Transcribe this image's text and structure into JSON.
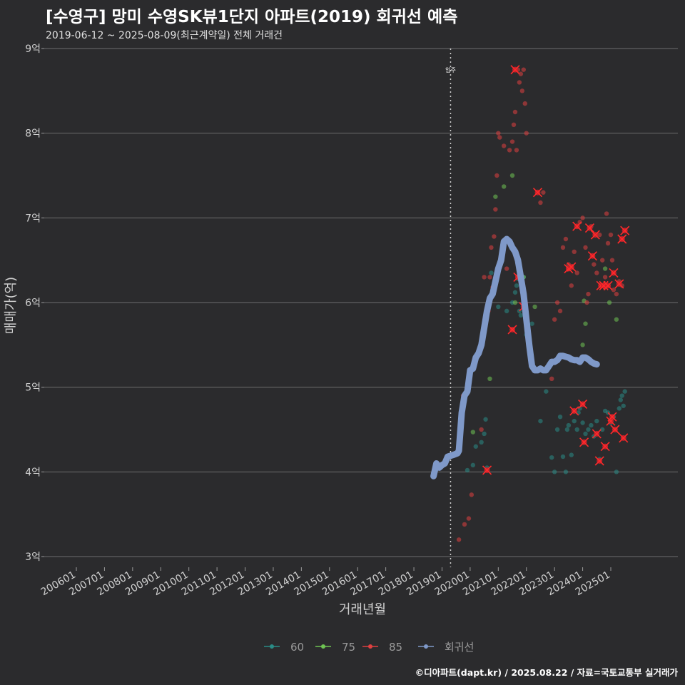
{
  "title": "[수영구] 망미 수영SK뷰1단지 아파트(2019) 회귀선 예측",
  "subtitle": "2019-06-12 ~ 2025-08-09(최근계약일) 전체 거래건",
  "footer": "©디아파트(dapt.kr) / 2025.08.22 / 자료=국토교통부 실거래가",
  "chart_data": {
    "type": "scatter",
    "title": "[수영구] 망미 수영SK뷰1단지 아파트(2019) 회귀선 예측",
    "xlabel": "거래년월",
    "ylabel": "매매가(억)",
    "xlim": [
      2005.5,
      2028.0
    ],
    "ylim": [
      3,
      9
    ],
    "yticks": [
      3,
      4,
      5,
      6,
      7,
      8,
      9
    ],
    "ytick_labels": [
      "3억",
      "4억",
      "5억",
      "6억",
      "7억",
      "8억",
      "9억"
    ],
    "xticks": [
      2006,
      2007,
      2008,
      2009,
      2010,
      2011,
      2012,
      2013,
      2014,
      2015,
      2016,
      2017,
      2018,
      2019,
      2020,
      2021,
      2022,
      2023,
      2024,
      2025
    ],
    "xtick_labels": [
      "200601",
      "200701",
      "200801",
      "200901",
      "201001",
      "201101",
      "201201",
      "201301",
      "201401",
      "201501",
      "201601",
      "201701",
      "201801",
      "201901",
      "202001",
      "202101",
      "202201",
      "202301",
      "202401",
      "202501"
    ],
    "annotation": {
      "x": 2019.0,
      "label": "입주"
    },
    "grid": true,
    "legend_position": "bottom",
    "series": [
      {
        "name": "60",
        "color": "#2a8c86",
        "points": [
          [
            2019.9,
            4.02
          ],
          [
            2020.1,
            4.08
          ],
          [
            2020.2,
            4.3
          ],
          [
            2020.4,
            4.35
          ],
          [
            2020.5,
            4.45
          ],
          [
            2020.55,
            4.62
          ],
          [
            2020.6,
            4.05
          ],
          [
            2020.75,
            6.35
          ],
          [
            2021.0,
            5.95
          ],
          [
            2021.3,
            5.9
          ],
          [
            2021.5,
            6.0
          ],
          [
            2021.6,
            6.12
          ],
          [
            2021.65,
            6.2
          ],
          [
            2021.7,
            6.28
          ],
          [
            2021.75,
            5.9
          ],
          [
            2021.8,
            5.85
          ],
          [
            2021.9,
            6.3
          ],
          [
            2022.0,
            5.62
          ],
          [
            2022.2,
            5.75
          ],
          [
            2022.5,
            4.6
          ],
          [
            2022.7,
            4.95
          ],
          [
            2022.9,
            4.17
          ],
          [
            2023.0,
            4.0
          ],
          [
            2023.1,
            4.5
          ],
          [
            2023.2,
            4.65
          ],
          [
            2023.3,
            4.18
          ],
          [
            2023.4,
            4.0
          ],
          [
            2023.45,
            4.5
          ],
          [
            2023.5,
            4.55
          ],
          [
            2023.6,
            4.2
          ],
          [
            2023.7,
            4.6
          ],
          [
            2023.8,
            4.5
          ],
          [
            2023.85,
            4.7
          ],
          [
            2023.9,
            4.75
          ],
          [
            2024.0,
            4.58
          ],
          [
            2024.1,
            4.45
          ],
          [
            2024.2,
            4.5
          ],
          [
            2024.3,
            4.55
          ],
          [
            2024.4,
            4.42
          ],
          [
            2024.5,
            4.6
          ],
          [
            2024.6,
            4.15
          ],
          [
            2024.7,
            4.5
          ],
          [
            2024.8,
            4.72
          ],
          [
            2024.9,
            4.7
          ],
          [
            2025.0,
            4.58
          ],
          [
            2025.1,
            4.65
          ],
          [
            2025.2,
            4.0
          ],
          [
            2025.3,
            4.75
          ],
          [
            2025.35,
            4.85
          ],
          [
            2025.4,
            4.9
          ],
          [
            2025.45,
            4.78
          ],
          [
            2025.5,
            4.95
          ]
        ]
      },
      {
        "name": "75",
        "color": "#6fc453",
        "points": [
          [
            2020.1,
            4.47
          ],
          [
            2020.7,
            5.1
          ],
          [
            2020.9,
            7.25
          ],
          [
            2021.2,
            7.37
          ],
          [
            2021.5,
            7.5
          ],
          [
            2021.6,
            6.0
          ],
          [
            2021.9,
            6.3
          ],
          [
            2022.3,
            5.95
          ],
          [
            2024.0,
            5.5
          ],
          [
            2024.05,
            6.02
          ],
          [
            2024.1,
            5.75
          ],
          [
            2024.8,
            6.4
          ],
          [
            2024.95,
            6.0
          ],
          [
            2025.2,
            5.8
          ]
        ]
      },
      {
        "name": "85",
        "color": "#e04040",
        "points": [
          [
            2019.6,
            3.2
          ],
          [
            2019.7,
            4.7
          ],
          [
            2019.75,
            4.9
          ],
          [
            2019.8,
            3.38
          ],
          [
            2019.95,
            3.45
          ],
          [
            2020.05,
            3.73
          ],
          [
            2020.4,
            4.5
          ],
          [
            2020.5,
            6.3
          ],
          [
            2020.55,
            5.85
          ],
          [
            2020.6,
            5.95
          ],
          [
            2020.65,
            5.9
          ],
          [
            2020.7,
            6.3
          ],
          [
            2020.75,
            6.65
          ],
          [
            2020.8,
            6.18
          ],
          [
            2020.85,
            6.78
          ],
          [
            2020.9,
            7.1
          ],
          [
            2020.95,
            7.5
          ],
          [
            2021.0,
            8.0
          ],
          [
            2021.05,
            7.95
          ],
          [
            2021.2,
            7.85
          ],
          [
            2021.3,
            6.4
          ],
          [
            2021.4,
            7.8
          ],
          [
            2021.5,
            7.9
          ],
          [
            2021.55,
            8.1
          ],
          [
            2021.6,
            8.25
          ],
          [
            2021.65,
            7.8
          ],
          [
            2021.7,
            8.75
          ],
          [
            2021.75,
            8.6
          ],
          [
            2021.8,
            8.7
          ],
          [
            2021.85,
            8.5
          ],
          [
            2021.9,
            8.75
          ],
          [
            2021.95,
            8.35
          ],
          [
            2022.0,
            8.0
          ],
          [
            2022.6,
            7.3
          ],
          [
            2022.5,
            7.18
          ],
          [
            2022.9,
            5.1
          ],
          [
            2023.0,
            5.8
          ],
          [
            2023.1,
            6.0
          ],
          [
            2023.2,
            5.9
          ],
          [
            2023.3,
            6.65
          ],
          [
            2023.4,
            6.75
          ],
          [
            2023.5,
            6.45
          ],
          [
            2023.6,
            6.2
          ],
          [
            2023.7,
            6.6
          ],
          [
            2023.8,
            6.35
          ],
          [
            2023.9,
            6.95
          ],
          [
            2024.0,
            7.0
          ],
          [
            2024.1,
            6.65
          ],
          [
            2024.15,
            6.0
          ],
          [
            2024.2,
            6.1
          ],
          [
            2024.3,
            6.9
          ],
          [
            2024.4,
            6.45
          ],
          [
            2024.5,
            6.35
          ],
          [
            2024.6,
            6.8
          ],
          [
            2024.7,
            6.5
          ],
          [
            2024.8,
            6.3
          ],
          [
            2024.85,
            7.05
          ],
          [
            2024.9,
            6.7
          ],
          [
            2025.0,
            6.8
          ],
          [
            2025.05,
            6.5
          ],
          [
            2025.1,
            6.15
          ],
          [
            2025.2,
            6.1
          ],
          [
            2025.3,
            6.25
          ],
          [
            2025.4,
            6.2
          ]
        ]
      }
    ],
    "highlighted_points": [
      [
        2020.6,
        4.02
      ],
      [
        2021.5,
        5.68
      ],
      [
        2021.6,
        8.75
      ],
      [
        2021.7,
        6.3
      ],
      [
        2021.9,
        5.95
      ],
      [
        2022.4,
        7.3
      ],
      [
        2023.5,
        6.4
      ],
      [
        2023.6,
        6.42
      ],
      [
        2023.7,
        4.72
      ],
      [
        2023.8,
        6.9
      ],
      [
        2024.0,
        4.8
      ],
      [
        2024.05,
        4.35
      ],
      [
        2024.25,
        6.88
      ],
      [
        2024.35,
        6.55
      ],
      [
        2024.45,
        6.8
      ],
      [
        2024.5,
        4.45
      ],
      [
        2024.6,
        4.13
      ],
      [
        2024.65,
        6.2
      ],
      [
        2024.75,
        6.2
      ],
      [
        2024.8,
        4.3
      ],
      [
        2024.9,
        6.2
      ],
      [
        2025.0,
        4.6
      ],
      [
        2025.05,
        4.65
      ],
      [
        2025.1,
        6.35
      ],
      [
        2025.15,
        4.5
      ],
      [
        2025.3,
        6.22
      ],
      [
        2025.4,
        6.75
      ],
      [
        2025.45,
        4.4
      ],
      [
        2025.5,
        6.85
      ]
    ],
    "regression": {
      "name": "회귀선",
      "color": "#7f99c9",
      "points": [
        [
          2018.7,
          3.95
        ],
        [
          2018.8,
          4.1
        ],
        [
          2018.9,
          4.05
        ],
        [
          2019.0,
          4.08
        ],
        [
          2019.1,
          4.1
        ],
        [
          2019.2,
          4.18
        ],
        [
          2019.4,
          4.2
        ],
        [
          2019.55,
          4.22
        ],
        [
          2019.6,
          4.25
        ],
        [
          2019.7,
          4.7
        ],
        [
          2019.8,
          4.9
        ],
        [
          2019.9,
          4.95
        ],
        [
          2020.0,
          5.2
        ],
        [
          2020.1,
          5.22
        ],
        [
          2020.2,
          5.35
        ],
        [
          2020.3,
          5.4
        ],
        [
          2020.4,
          5.5
        ],
        [
          2020.5,
          5.7
        ],
        [
          2020.6,
          5.9
        ],
        [
          2020.7,
          6.05
        ],
        [
          2020.8,
          6.1
        ],
        [
          2020.9,
          6.25
        ],
        [
          2021.0,
          6.4
        ],
        [
          2021.1,
          6.5
        ],
        [
          2021.2,
          6.72
        ],
        [
          2021.3,
          6.75
        ],
        [
          2021.4,
          6.72
        ],
        [
          2021.5,
          6.65
        ],
        [
          2021.6,
          6.6
        ],
        [
          2021.7,
          6.5
        ],
        [
          2021.8,
          6.3
        ],
        [
          2021.9,
          6.1
        ],
        [
          2022.0,
          5.8
        ],
        [
          2022.1,
          5.5
        ],
        [
          2022.2,
          5.25
        ],
        [
          2022.3,
          5.2
        ],
        [
          2022.4,
          5.2
        ],
        [
          2022.5,
          5.22
        ],
        [
          2022.6,
          5.2
        ],
        [
          2022.7,
          5.2
        ],
        [
          2022.8,
          5.25
        ],
        [
          2022.9,
          5.3
        ],
        [
          2023.0,
          5.3
        ],
        [
          2023.1,
          5.32
        ],
        [
          2023.2,
          5.37
        ],
        [
          2023.3,
          5.37
        ],
        [
          2023.4,
          5.36
        ],
        [
          2023.5,
          5.35
        ],
        [
          2023.6,
          5.33
        ],
        [
          2023.7,
          5.32
        ],
        [
          2023.8,
          5.32
        ],
        [
          2023.9,
          5.3
        ],
        [
          2024.0,
          5.35
        ],
        [
          2024.1,
          5.35
        ],
        [
          2024.2,
          5.33
        ],
        [
          2024.3,
          5.3
        ],
        [
          2024.4,
          5.28
        ],
        [
          2024.5,
          5.27
        ]
      ]
    }
  }
}
